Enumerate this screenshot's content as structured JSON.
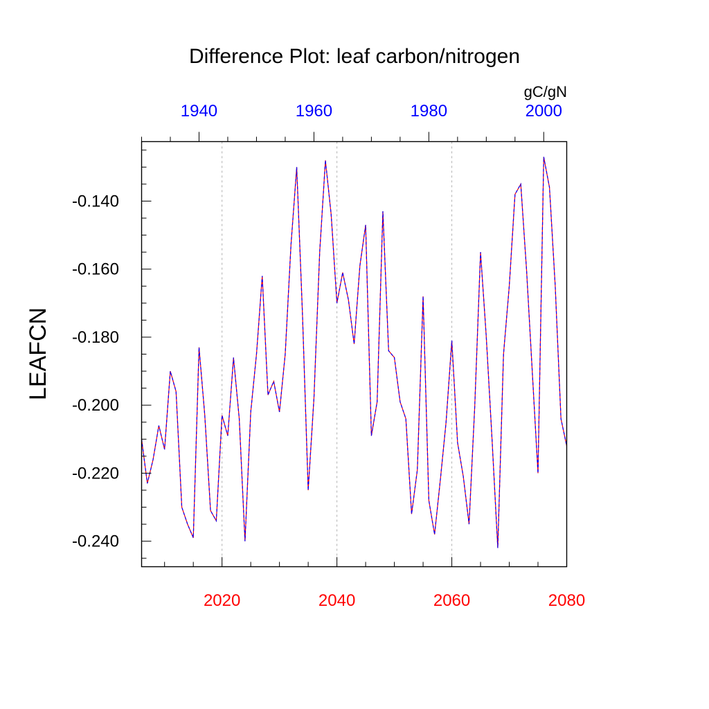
{
  "chart_data": {
    "type": "line",
    "title": "Difference Plot: leaf carbon/nitrogen",
    "ylabel": "LEAFCN",
    "units_label": "gC/gN",
    "ylim": [
      -0.2475,
      -0.1225
    ],
    "y_ticks": [
      -0.14,
      -0.16,
      -0.18,
      -0.2,
      -0.22,
      -0.24
    ],
    "y_tick_labels": [
      "-0.140",
      "-0.160",
      "-0.180",
      "-0.200",
      "-0.220",
      "-0.240"
    ],
    "bottom_axis": {
      "range": [
        2006,
        2080
      ],
      "ticks": [
        2020,
        2040,
        2060,
        2080
      ],
      "tick_labels": [
        "2020",
        "2040",
        "2060",
        "2080"
      ],
      "color": "#ff0000"
    },
    "top_axis": {
      "range": [
        1930,
        2004
      ],
      "ticks": [
        1940,
        1960,
        1980,
        2000
      ],
      "tick_labels": [
        "1940",
        "1960",
        "1980",
        "2000"
      ],
      "color": "#0000ff"
    },
    "grid": "dashed vertical at major bottom ticks",
    "series": [
      {
        "name": "difference",
        "colors": [
          "#ff0000",
          "#0000ff"
        ],
        "x": [
          2006,
          2007,
          2008,
          2009,
          2010,
          2011,
          2012,
          2013,
          2014,
          2015,
          2016,
          2017,
          2018,
          2019,
          2020,
          2021,
          2022,
          2023,
          2024,
          2025,
          2026,
          2027,
          2028,
          2029,
          2030,
          2031,
          2032,
          2033,
          2034,
          2035,
          2036,
          2037,
          2038,
          2039,
          2040,
          2041,
          2042,
          2043,
          2044,
          2045,
          2046,
          2047,
          2048,
          2049,
          2050,
          2051,
          2052,
          2053,
          2054,
          2055,
          2056,
          2057,
          2058,
          2059,
          2060,
          2061,
          2062,
          2063,
          2064,
          2065,
          2066,
          2067,
          2068,
          2069,
          2070,
          2071,
          2072,
          2073,
          2074,
          2075,
          2076,
          2077,
          2078,
          2079,
          2080
        ],
        "values": [
          -0.21,
          -0.223,
          -0.216,
          -0.206,
          -0.213,
          -0.19,
          -0.196,
          -0.23,
          -0.235,
          -0.239,
          -0.183,
          -0.203,
          -0.231,
          -0.234,
          -0.203,
          -0.209,
          -0.186,
          -0.204,
          -0.24,
          -0.202,
          -0.185,
          -0.162,
          -0.197,
          -0.193,
          -0.202,
          -0.185,
          -0.153,
          -0.13,
          -0.173,
          -0.225,
          -0.198,
          -0.155,
          -0.128,
          -0.144,
          -0.17,
          -0.161,
          -0.169,
          -0.182,
          -0.159,
          -0.147,
          -0.209,
          -0.199,
          -0.143,
          -0.184,
          -0.186,
          -0.199,
          -0.204,
          -0.232,
          -0.219,
          -0.168,
          -0.228,
          -0.238,
          -0.222,
          -0.205,
          -0.181,
          -0.211,
          -0.221,
          -0.235,
          -0.2,
          -0.155,
          -0.18,
          -0.21,
          -0.242,
          -0.185,
          -0.165,
          -0.138,
          -0.135,
          -0.16,
          -0.19,
          -0.22,
          -0.127,
          -0.136,
          -0.165,
          -0.204,
          -0.212
        ]
      }
    ]
  }
}
